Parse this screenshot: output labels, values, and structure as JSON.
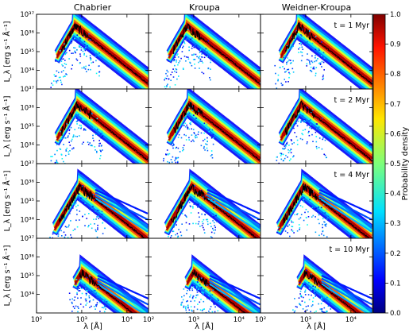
{
  "chart_data": {
    "type": "heatmap",
    "columns": [
      "Chabrier",
      "Kroupa",
      "Weidner-Kroupa"
    ],
    "rows": [
      {
        "age": "t = 1 Myr",
        "peak_log_L": 36.4,
        "peak_log_lambda": 2.85,
        "tail": false,
        "lower_cut": 2.45
      },
      {
        "age": "t = 2 Myr",
        "peak_log_L": 36.2,
        "peak_log_lambda": 2.9,
        "tail": false,
        "lower_cut": 2.45
      },
      {
        "age": "t = 4 Myr",
        "peak_log_L": 35.8,
        "peak_log_lambda": 2.95,
        "tail": true,
        "lower_cut": 2.4
      },
      {
        "age": "t = 10 Myr",
        "peak_log_L": 35.2,
        "peak_log_lambda": 3.0,
        "tail": true,
        "lower_cut": 2.85
      }
    ],
    "xlabel": "λ [Å]",
    "ylabel": "L_λ [erg s⁻¹ Å⁻¹]",
    "x_scale": "log",
    "y_scale": "log",
    "xlim": [
      100,
      30000
    ],
    "ylim": [
      1e+33,
      1e+37
    ],
    "x_tick_labels": [
      "10²",
      "10³",
      "10⁴"
    ],
    "y_tick_labels": [
      "10³⁴",
      "10³⁵",
      "10³⁶",
      "10³⁷"
    ],
    "colorbar": {
      "label": "Probability density",
      "range": [
        0.0,
        1.0
      ],
      "ticks": [
        "0.0",
        "0.1",
        "0.2",
        "0.3",
        "0.4",
        "0.5",
        "0.6",
        "0.7",
        "0.8",
        "0.9",
        "1.0"
      ],
      "colormap": "jet"
    },
    "median_line_color": "#000000"
  }
}
